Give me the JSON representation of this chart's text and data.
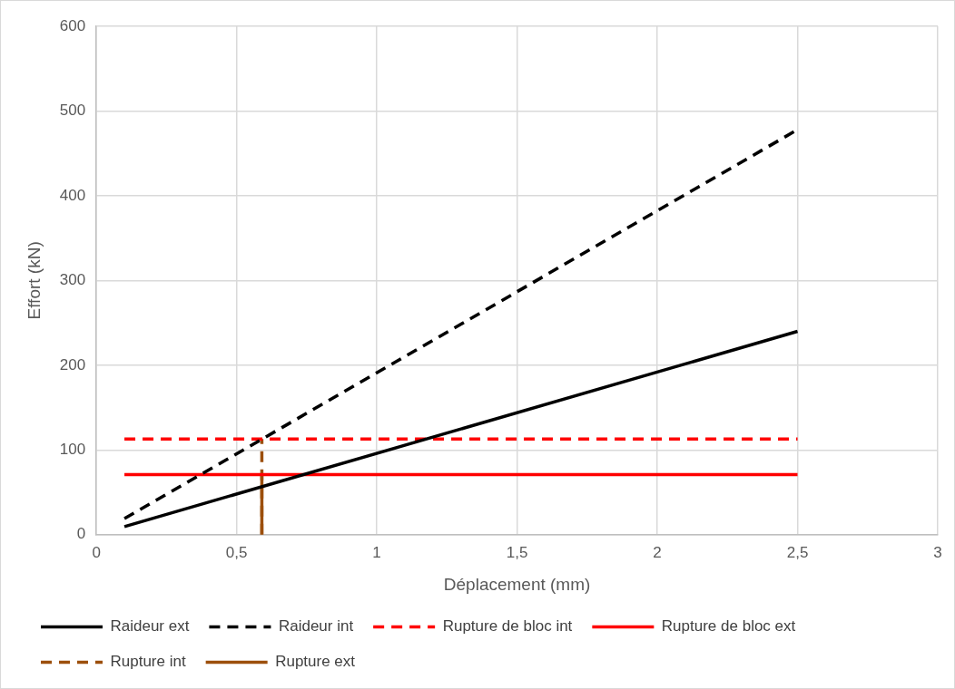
{
  "chart_data": {
    "type": "line",
    "xlabel": "Déplacement (mm)",
    "ylabel": "Effort (kN)",
    "xlim": [
      0,
      3
    ],
    "xticks": [
      0,
      {
        "value": 0.5,
        "label": "0,5"
      },
      1,
      {
        "value": 1.5,
        "label": "1,5"
      },
      2,
      {
        "value": 2.5,
        "label": "2,5"
      },
      3
    ],
    "ylim": [
      0,
      600
    ],
    "yticks": [
      0,
      100,
      200,
      300,
      400,
      500,
      600
    ],
    "grid": true,
    "legend": "bottom",
    "marker": "none",
    "series": [
      {
        "name": "Raideur ext",
        "color": "#000000",
        "line_style": "solid",
        "x": [
          0.1,
          2.5
        ],
        "values": [
          9.6,
          240
        ]
      },
      {
        "name": "Raideur int",
        "color": "#000000",
        "line_style": "dashed",
        "x": [
          0.1,
          2.5
        ],
        "values": [
          19,
          478
        ]
      },
      {
        "name": "Rupture de bloc int",
        "color": "#ff0000",
        "line_style": "dashed",
        "x": [
          0.1,
          2.5
        ],
        "values": [
          113,
          113
        ]
      },
      {
        "name": "Rupture de bloc ext",
        "color": "#ff0000",
        "line_style": "solid",
        "x": [
          0.1,
          2.5
        ],
        "values": [
          71,
          71
        ]
      },
      {
        "name": "Rupture int",
        "color": "#9c4f0c",
        "line_style": "dashed",
        "x": [
          0.59,
          0.59
        ],
        "values": [
          0,
          113
        ]
      },
      {
        "name": "Rupture ext",
        "color": "#9c4f0c",
        "line_style": "solid",
        "x": [
          0.59,
          0.59
        ],
        "values": [
          0,
          71
        ]
      }
    ]
  }
}
